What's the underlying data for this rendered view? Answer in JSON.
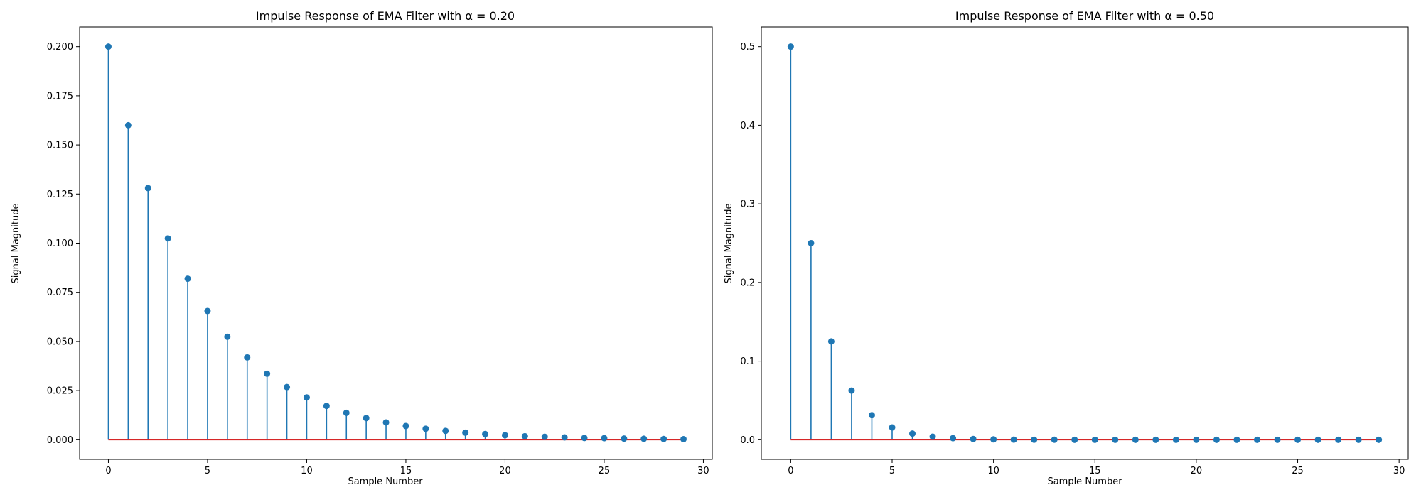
{
  "chart_data": [
    {
      "type": "stem",
      "title": "Impulse Response of EMA Filter with α = 0.20",
      "xlabel": "Sample Number",
      "ylabel": "Signal Magnitude",
      "xlim": [
        -1.45,
        30.45
      ],
      "ylim": [
        -0.01,
        0.21
      ],
      "xticks": [
        0,
        5,
        10,
        15,
        20,
        25,
        30
      ],
      "yticks": [
        0.0,
        0.025,
        0.05,
        0.075,
        0.1,
        0.125,
        0.15,
        0.175,
        0.2
      ],
      "ytick_labels": [
        "0.000",
        "0.025",
        "0.050",
        "0.075",
        "0.100",
        "0.125",
        "0.150",
        "0.175",
        "0.200"
      ],
      "grid": false,
      "stem_color": "#1f77b4",
      "baseline_color": "#d62728",
      "x": [
        0,
        1,
        2,
        3,
        4,
        5,
        6,
        7,
        8,
        9,
        10,
        11,
        12,
        13,
        14,
        15,
        16,
        17,
        18,
        19,
        20,
        21,
        22,
        23,
        24,
        25,
        26,
        27,
        28,
        29
      ],
      "values": [
        0.2,
        0.16,
        0.128,
        0.1024,
        0.0819,
        0.0655,
        0.0524,
        0.0419,
        0.0336,
        0.0268,
        0.0215,
        0.0172,
        0.0137,
        0.011,
        0.0088,
        0.007,
        0.0056,
        0.0045,
        0.0036,
        0.0029,
        0.0023,
        0.0018,
        0.0015,
        0.0012,
        0.0009,
        0.0008,
        0.0006,
        0.0005,
        0.0004,
        0.0003
      ]
    },
    {
      "type": "stem",
      "title": "Impulse Response of EMA Filter with α = 0.50",
      "xlabel": "Sample Number",
      "ylabel": "Signal Magnitude",
      "xlim": [
        -1.45,
        30.45
      ],
      "ylim": [
        -0.025,
        0.525
      ],
      "xticks": [
        0,
        5,
        10,
        15,
        20,
        25,
        30
      ],
      "yticks": [
        0.0,
        0.1,
        0.2,
        0.3,
        0.4,
        0.5
      ],
      "ytick_labels": [
        "0.0",
        "0.1",
        "0.2",
        "0.3",
        "0.4",
        "0.5"
      ],
      "grid": false,
      "stem_color": "#1f77b4",
      "baseline_color": "#d62728",
      "x": [
        0,
        1,
        2,
        3,
        4,
        5,
        6,
        7,
        8,
        9,
        10,
        11,
        12,
        13,
        14,
        15,
        16,
        17,
        18,
        19,
        20,
        21,
        22,
        23,
        24,
        25,
        26,
        27,
        28,
        29
      ],
      "values": [
        0.5,
        0.25,
        0.125,
        0.0625,
        0.03125,
        0.015625,
        0.0078,
        0.0039,
        0.002,
        0.001,
        0.0005,
        0.0002,
        0.0001,
        0.0001,
        0,
        0,
        0,
        0,
        0,
        0,
        0,
        0,
        0,
        0,
        0,
        0,
        0,
        0,
        0,
        0
      ]
    }
  ]
}
